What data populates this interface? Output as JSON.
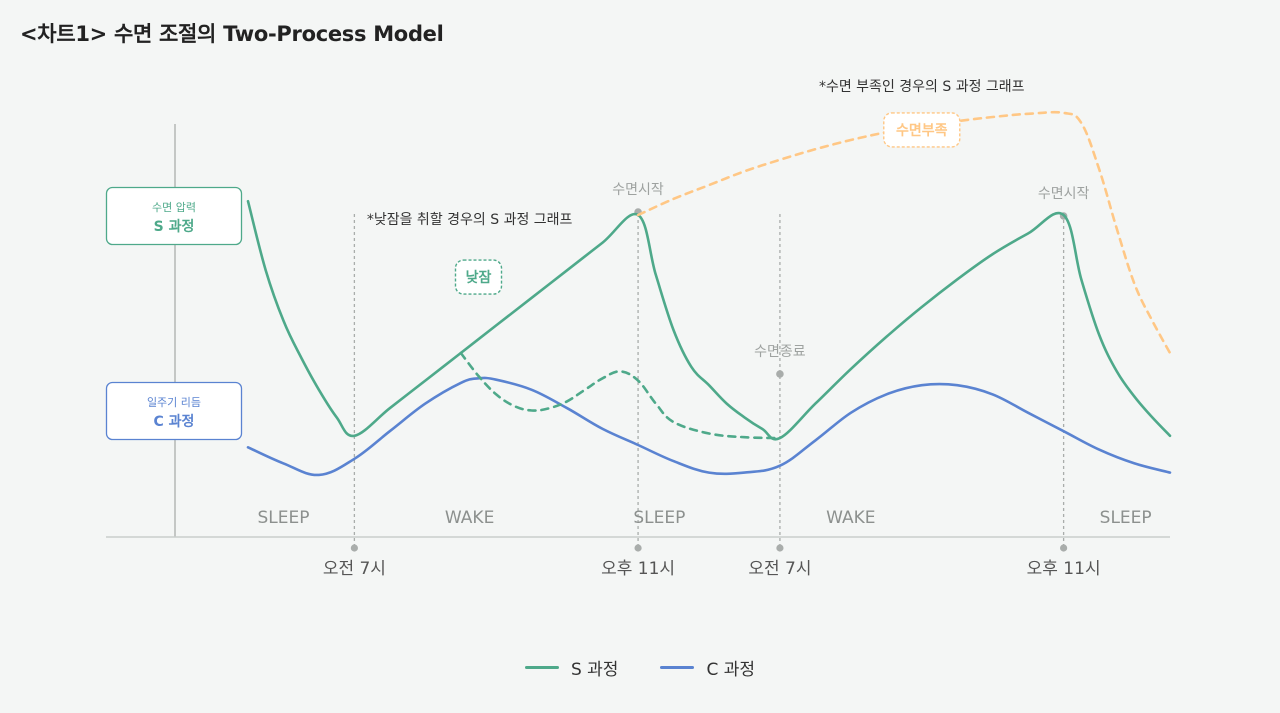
{
  "title": "<차트1>  수면 조절의 Two-Process Model",
  "colors": {
    "s_process": "#4ea98a",
    "c_process": "#5a83d1",
    "deprived": "#ffc785",
    "axis": "#c9cdcb",
    "marker": "#a9adab"
  },
  "chart_data": {
    "type": "line",
    "title": "<차트1>  수면 조절의 Two-Process Model",
    "x_tick_labels": [
      "오전 7시",
      "오후 11시",
      "오전 7시",
      "오후 11시"
    ],
    "x_ticks": [
      0,
      16,
      24,
      40
    ],
    "xlim": [
      -6,
      46
    ],
    "ylim": [
      0,
      100
    ],
    "y_axis_boxes": [
      {
        "line1": "수면 압력",
        "line2": "S 과정",
        "color": "#4ea98a"
      },
      {
        "line1": "일주기 리듬",
        "line2": "C 과정",
        "color": "#5a83d1"
      }
    ],
    "phases": [
      {
        "label": "SLEEP",
        "center": -4
      },
      {
        "label": "WAKE",
        "center": 6.5
      },
      {
        "label": "SLEEP",
        "center": 17.2
      },
      {
        "label": "WAKE",
        "center": 28
      },
      {
        "label": "SLEEP",
        "center": 43.5
      }
    ],
    "markers": [
      {
        "label": "수면시작",
        "x": 16
      },
      {
        "label": "수면종료",
        "x": 24
      },
      {
        "label": "수면시작",
        "x": 40
      }
    ],
    "series": [
      {
        "name": "S 과정",
        "style": "solid",
        "x": [
          -6,
          -5,
          -4,
          -3,
          -2,
          -1,
          0,
          2,
          4,
          6,
          8,
          10,
          12,
          14,
          16,
          17,
          18,
          19,
          20,
          21,
          22,
          23,
          24,
          26,
          28,
          30,
          32,
          34,
          36,
          38,
          40,
          41,
          42,
          43,
          44,
          45,
          46
        ],
        "y": [
          78,
          63,
          52,
          44,
          37,
          31,
          27,
          33,
          39,
          45,
          51,
          57,
          63,
          69,
          75,
          62,
          50,
          42,
          38,
          34,
          31,
          28.5,
          26.5,
          34,
          41.5,
          48.5,
          55,
          61,
          66.5,
          71,
          75,
          61,
          49,
          41,
          35.5,
          31,
          27
        ]
      },
      {
        "name": "C 과정",
        "style": "solid",
        "x": [
          -6,
          -4,
          -2,
          0,
          2,
          4,
          6,
          7,
          8,
          10,
          12,
          14,
          16,
          18,
          20,
          22,
          24,
          26,
          28,
          30,
          32,
          34,
          36,
          38,
          40,
          42,
          44,
          46
        ],
        "y": [
          24.5,
          21,
          18.5,
          22,
          28,
          34,
          38.5,
          39.5,
          39.2,
          37,
          33,
          28.5,
          25,
          21.5,
          19,
          19,
          20.5,
          26,
          32,
          36,
          38,
          38,
          36,
          32,
          28,
          24,
          21,
          19
        ]
      },
      {
        "name": "낮잠",
        "style": "dashed",
        "x": [
          6,
          7,
          8,
          9,
          10,
          11,
          12,
          13,
          14,
          15,
          16,
          17,
          18,
          20,
          22,
          24
        ],
        "y": [
          45,
          40,
          36,
          33.5,
          32.5,
          33,
          34.5,
          37,
          39.5,
          41,
          39,
          34,
          30,
          27.5,
          26.7,
          26.5
        ]
      },
      {
        "name": "수면부족",
        "style": "dashed",
        "x": [
          16,
          18,
          20,
          22,
          24,
          26,
          28,
          30,
          32,
          34,
          36,
          38,
          40,
          41,
          42,
          43,
          44,
          45,
          46
        ],
        "y": [
          75,
          78.5,
          81.5,
          84.5,
          87,
          89.3,
          91.3,
          93,
          94.3,
          95.4,
          96.3,
          97,
          97.2,
          95,
          85,
          72,
          60,
          52,
          45
        ]
      }
    ],
    "annotations": [
      {
        "text": "*낮잠을 취할 경우의 S 과정 그래프",
        "x": 6.5,
        "y": 73
      },
      {
        "text": "낮잠",
        "x": 7,
        "y": 61.5,
        "boxed": true,
        "color": "#4ea98a"
      },
      {
        "text": "*수면 부족인 경우의 S 과정 그래프",
        "x": 32,
        "y": 102
      },
      {
        "text": "수면부족",
        "x": 32,
        "y": 93.5,
        "boxed": true,
        "color": "#ffc785"
      }
    ]
  },
  "legend": [
    {
      "label": "S 과정",
      "color": "#4ea98a"
    },
    {
      "label": "C 과정",
      "color": "#5a83d1"
    }
  ]
}
